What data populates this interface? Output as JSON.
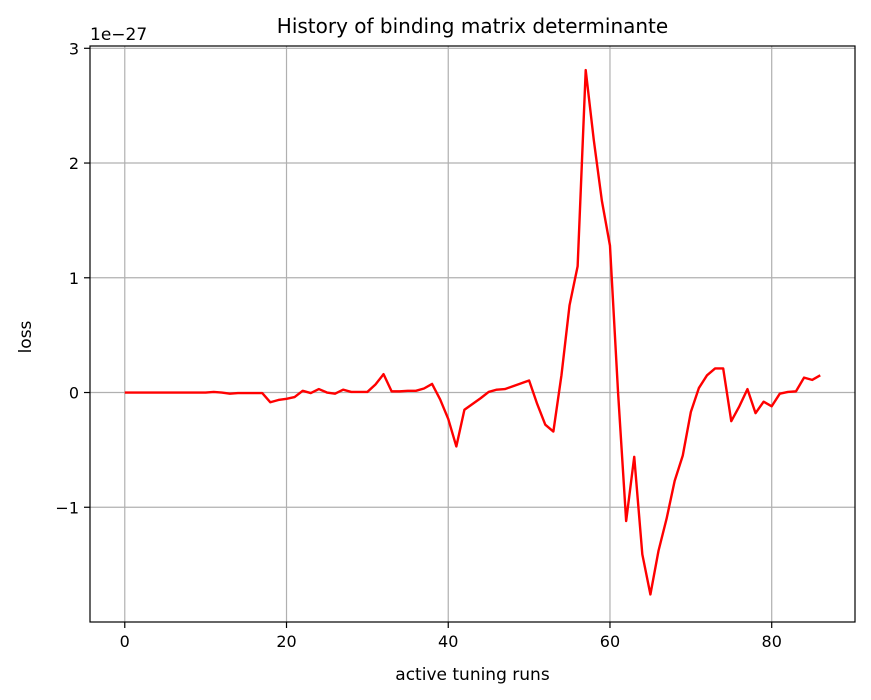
{
  "chart_data": {
    "type": "line",
    "title": "History of binding matrix determinante",
    "xlabel": "active tuning runs",
    "ylabel": "loss",
    "y_offset_label": "1e−27",
    "xlim": [
      -4.3,
      90.3
    ],
    "ylim": [
      -2.0,
      3.02
    ],
    "xticks": [
      0,
      20,
      40,
      60,
      80
    ],
    "xtick_labels": [
      "0",
      "20",
      "40",
      "60",
      "80"
    ],
    "yticks": [
      -1,
      0,
      1,
      2,
      3
    ],
    "ytick_labels": [
      "−1",
      "0",
      "1",
      "2",
      "3"
    ],
    "grid": true,
    "series": [
      {
        "color": "#ff0000",
        "x": [
          0,
          1,
          2,
          3,
          4,
          5,
          6,
          7,
          8,
          9,
          10,
          11,
          12,
          13,
          14,
          15,
          16,
          17,
          18,
          19,
          20,
          21,
          22,
          23,
          24,
          25,
          26,
          27,
          28,
          29,
          30,
          31,
          32,
          33,
          34,
          35,
          36,
          37,
          38,
          39,
          40,
          41,
          42,
          43,
          44,
          45,
          46,
          47,
          48,
          49,
          50,
          51,
          52,
          53,
          54,
          55,
          56,
          57,
          58,
          59,
          60,
          61,
          62,
          63,
          64,
          65,
          66,
          67,
          68,
          69,
          70,
          71,
          72,
          73,
          74,
          75,
          76,
          77,
          78,
          79,
          80,
          81,
          82,
          83,
          84,
          85,
          86
        ],
        "y": [
          0.0,
          0.0,
          0.0,
          0.0,
          0.0,
          0.0,
          0.0,
          0.0,
          0.0,
          0.0,
          0.0,
          0.005,
          0.0,
          -0.01,
          -0.005,
          -0.005,
          -0.005,
          -0.005,
          -0.085,
          -0.065,
          -0.055,
          -0.04,
          0.015,
          -0.005,
          0.03,
          0.0,
          -0.01,
          0.025,
          0.005,
          0.005,
          0.005,
          0.07,
          0.16,
          0.01,
          0.01,
          0.015,
          0.015,
          0.035,
          0.075,
          -0.06,
          -0.23,
          -0.47,
          -0.15,
          -0.1,
          -0.05,
          0.005,
          0.025,
          0.03,
          0.055,
          0.08,
          0.105,
          -0.1,
          -0.28,
          -0.34,
          0.15,
          0.76,
          1.1,
          2.81,
          2.2,
          1.67,
          1.28,
          0.0,
          -1.12,
          -0.56,
          -1.41,
          -1.76,
          -1.38,
          -1.1,
          -0.77,
          -0.55,
          -0.17,
          0.04,
          0.15,
          0.21,
          0.21,
          -0.25,
          -0.12,
          0.03,
          -0.18,
          -0.08,
          -0.12,
          -0.01,
          0.005,
          0.01,
          0.13,
          0.11,
          0.15
        ]
      }
    ]
  }
}
